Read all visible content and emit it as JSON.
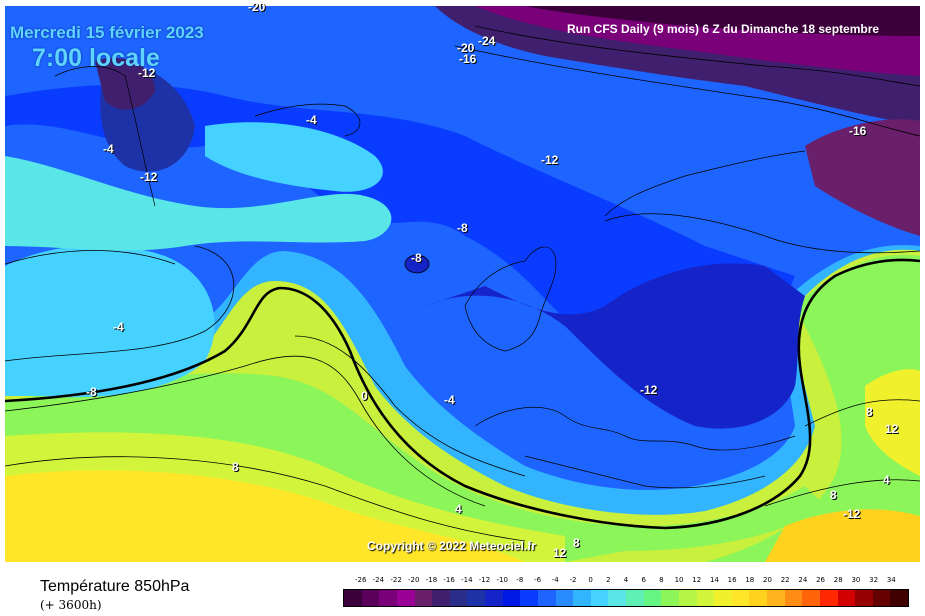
{
  "header": {
    "date": "Mercredi 15 février 2023",
    "time": "7:00 locale",
    "run_info": "Run CFS Daily (9 mois) 6 Z du Dimanche 18 septembre"
  },
  "map": {
    "copyright": "Copyright © 2022 Meteociel.fr",
    "contour_labels": [
      "-20",
      "-20",
      "-24",
      "-16",
      "-16",
      "-12",
      "-4",
      "-4",
      "-12",
      "-12",
      "-8",
      "-8",
      "-4",
      "-8",
      "0",
      "-4",
      "-12",
      "8",
      "4",
      "8",
      "12",
      "8",
      "4",
      "-12",
      "12",
      "8"
    ],
    "legend_colors": {
      "coldest": "#3b003b",
      "deep_blue": "#0012d0",
      "sky_blue": "#3fc8ff",
      "green": "#74f05a",
      "yellow": "#fff000",
      "warmest": "#400000"
    }
  },
  "footer": {
    "title": "Température 850hPa",
    "subtitle": "(+ 3600h)"
  },
  "scale": {
    "ticks": [
      "-26",
      "-24",
      "-22",
      "-20",
      "-18",
      "-16",
      "-14",
      "-12",
      "-10",
      "-8",
      "-6",
      "-4",
      "-2",
      "0",
      "2",
      "4",
      "6",
      "8",
      "10",
      "12",
      "14",
      "16",
      "18",
      "20",
      "22",
      "24",
      "26",
      "28",
      "30",
      "32",
      "34"
    ],
    "colors": [
      "#3b003b",
      "#5a005a",
      "#7a007a",
      "#9b0096",
      "#6a1f6a",
      "#40206e",
      "#2a2e8a",
      "#1e32a8",
      "#1424c8",
      "#0018e6",
      "#0a3cff",
      "#1e64ff",
      "#288cff",
      "#32b4ff",
      "#46d2ff",
      "#5ae6e6",
      "#5ef0b4",
      "#64f582",
      "#8cf55a",
      "#b4f546",
      "#d2f53c",
      "#f0f02d",
      "#ffe628",
      "#ffd21e",
      "#ffb41e",
      "#ff8c14",
      "#ff640a",
      "#ff2800",
      "#d20000",
      "#960000",
      "#640000",
      "#400000"
    ]
  }
}
